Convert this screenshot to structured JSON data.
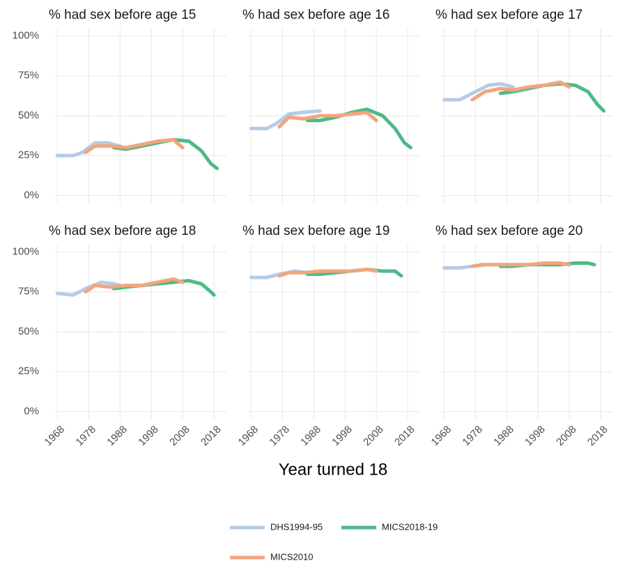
{
  "x_label": "Year turned 18",
  "chart_data": [
    {
      "type": "line",
      "title": "% had sex before age 15",
      "xlim": [
        1967,
        2022
      ],
      "xticks": [
        1968,
        1978,
        1988,
        1998,
        2008,
        2018
      ],
      "ylim": [
        -5,
        105
      ],
      "yticks": [
        {
          "value": 0,
          "label": "0%"
        },
        {
          "value": 25,
          "label": "25%"
        },
        {
          "value": 50,
          "label": "50%"
        },
        {
          "value": 75,
          "label": "75%"
        },
        {
          "value": 100,
          "label": "100%"
        }
      ],
      "series": [
        {
          "name": "DHS1994-95",
          "color": "#b3cce6",
          "x": [
            1968,
            1973,
            1976,
            1980,
            1984,
            1988
          ],
          "values": [
            25,
            25,
            27,
            33,
            33,
            31
          ]
        },
        {
          "name": "MICS2018-19",
          "color": "#4dba87",
          "x": [
            1986,
            1990,
            1995,
            2000,
            2005,
            2010,
            2014,
            2017,
            2019
          ],
          "values": [
            30,
            29,
            31,
            33,
            35,
            34,
            28,
            20,
            17
          ]
        },
        {
          "name": "MICS2010",
          "color": "#f2a57c",
          "x": [
            1977,
            1980,
            1985,
            1990,
            1995,
            2000,
            2005,
            2008
          ],
          "values": [
            27,
            31,
            31,
            30,
            32,
            34,
            35,
            30
          ]
        }
      ]
    },
    {
      "type": "line",
      "title": "% had sex before age 16",
      "xlim": [
        1967,
        2022
      ],
      "xticks": [
        1968,
        1978,
        1988,
        1998,
        2008,
        2018
      ],
      "ylim": [
        -5,
        105
      ],
      "yticks": [
        {
          "value": 0,
          "label": "0%"
        },
        {
          "value": 25,
          "label": "25%"
        },
        {
          "value": 50,
          "label": "50%"
        },
        {
          "value": 75,
          "label": "75%"
        },
        {
          "value": 100,
          "label": "100%"
        }
      ],
      "series": [
        {
          "name": "DHS1994-95",
          "color": "#b3cce6",
          "x": [
            1968,
            1973,
            1976,
            1980,
            1984,
            1990
          ],
          "values": [
            42,
            42,
            45,
            51,
            52,
            53
          ]
        },
        {
          "name": "MICS2018-19",
          "color": "#4dba87",
          "x": [
            1986,
            1990,
            1995,
            2000,
            2005,
            2010,
            2014,
            2017,
            2019
          ],
          "values": [
            47,
            47,
            49,
            52,
            54,
            50,
            42,
            33,
            30
          ]
        },
        {
          "name": "MICS2010",
          "color": "#f2a57c",
          "x": [
            1977,
            1980,
            1985,
            1990,
            1995,
            2000,
            2005,
            2008
          ],
          "values": [
            43,
            49,
            48,
            50,
            50,
            51,
            52,
            47
          ]
        }
      ]
    },
    {
      "type": "line",
      "title": "% had sex before age 17",
      "xlim": [
        1967,
        2022
      ],
      "xticks": [
        1968,
        1978,
        1988,
        1998,
        2008,
        2018
      ],
      "ylim": [
        -5,
        105
      ],
      "yticks": [
        {
          "value": 0,
          "label": "0%"
        },
        {
          "value": 25,
          "label": "25%"
        },
        {
          "value": 50,
          "label": "50%"
        },
        {
          "value": 75,
          "label": "75%"
        },
        {
          "value": 100,
          "label": "100%"
        }
      ],
      "series": [
        {
          "name": "DHS1994-95",
          "color": "#b3cce6",
          "x": [
            1968,
            1973,
            1977,
            1982,
            1986,
            1990
          ],
          "values": [
            60,
            60,
            64,
            69,
            70,
            68
          ]
        },
        {
          "name": "MICS2018-19",
          "color": "#4dba87",
          "x": [
            1986,
            1990,
            1995,
            2000,
            2005,
            2010,
            2014,
            2017,
            2019
          ],
          "values": [
            64,
            65,
            67,
            69,
            70,
            69,
            65,
            57,
            53
          ]
        },
        {
          "name": "MICS2010",
          "color": "#f2a57c",
          "x": [
            1977,
            1981,
            1986,
            1990,
            1995,
            2000,
            2005,
            2008
          ],
          "values": [
            60,
            65,
            67,
            66,
            68,
            69,
            71,
            68
          ]
        }
      ]
    },
    {
      "type": "line",
      "title": "% had sex before age 18",
      "xlim": [
        1967,
        2022
      ],
      "xticks": [
        1968,
        1978,
        1988,
        1998,
        2008,
        2018
      ],
      "ylim": [
        -5,
        105
      ],
      "yticks": [
        {
          "value": 0,
          "label": "0%"
        },
        {
          "value": 25,
          "label": "25%"
        },
        {
          "value": 50,
          "label": "50%"
        },
        {
          "value": 75,
          "label": "75%"
        },
        {
          "value": 100,
          "label": "100%"
        }
      ],
      "series": [
        {
          "name": "DHS1994-95",
          "color": "#b3cce6",
          "x": [
            1968,
            1973,
            1977,
            1982,
            1986,
            1990
          ],
          "values": [
            74,
            73,
            77,
            81,
            80,
            78
          ]
        },
        {
          "name": "MICS2018-19",
          "color": "#4dba87",
          "x": [
            1986,
            1990,
            1995,
            2000,
            2005,
            2010,
            2014,
            2017,
            2018
          ],
          "values": [
            77,
            78,
            79,
            80,
            81,
            82,
            80,
            75,
            73
          ]
        },
        {
          "name": "MICS2010",
          "color": "#f2a57c",
          "x": [
            1977,
            1980,
            1985,
            1990,
            1995,
            2000,
            2005,
            2008
          ],
          "values": [
            75,
            79,
            78,
            79,
            79,
            81,
            83,
            81
          ]
        }
      ]
    },
    {
      "type": "line",
      "title": "% had sex before age 19",
      "xlim": [
        1967,
        2022
      ],
      "xticks": [
        1968,
        1978,
        1988,
        1998,
        2008,
        2018
      ],
      "ylim": [
        -5,
        105
      ],
      "yticks": [
        {
          "value": 0,
          "label": "0%"
        },
        {
          "value": 25,
          "label": "25%"
        },
        {
          "value": 50,
          "label": "50%"
        },
        {
          "value": 75,
          "label": "75%"
        },
        {
          "value": 100,
          "label": "100%"
        }
      ],
      "series": [
        {
          "name": "DHS1994-95",
          "color": "#b3cce6",
          "x": [
            1968,
            1973,
            1977,
            1982,
            1986
          ],
          "values": [
            84,
            84,
            86,
            88,
            87
          ]
        },
        {
          "name": "MICS2018-19",
          "color": "#4dba87",
          "x": [
            1986,
            1990,
            1995,
            2000,
            2005,
            2010,
            2014,
            2016
          ],
          "values": [
            86,
            86,
            87,
            88,
            89,
            88,
            88,
            85
          ]
        },
        {
          "name": "MICS2010",
          "color": "#f2a57c",
          "x": [
            1977,
            1980,
            1985,
            1990,
            1995,
            2000,
            2005,
            2008
          ],
          "values": [
            85,
            87,
            87,
            88,
            88,
            88,
            89,
            88
          ]
        }
      ]
    },
    {
      "type": "line",
      "title": "% had sex before age 20",
      "xlim": [
        1967,
        2022
      ],
      "xticks": [
        1968,
        1978,
        1988,
        1998,
        2008,
        2018
      ],
      "ylim": [
        -5,
        105
      ],
      "yticks": [
        {
          "value": 0,
          "label": "0%"
        },
        {
          "value": 25,
          "label": "25%"
        },
        {
          "value": 50,
          "label": "50%"
        },
        {
          "value": 75,
          "label": "75%"
        },
        {
          "value": 100,
          "label": "100%"
        }
      ],
      "series": [
        {
          "name": "DHS1994-95",
          "color": "#b3cce6",
          "x": [
            1968,
            1973,
            1977,
            1982,
            1986
          ],
          "values": [
            90,
            90,
            91,
            92,
            92
          ]
        },
        {
          "name": "MICS2018-19",
          "color": "#4dba87",
          "x": [
            1986,
            1990,
            1995,
            2000,
            2005,
            2010,
            2014,
            2016
          ],
          "values": [
            91,
            91,
            92,
            92,
            92,
            93,
            93,
            92
          ]
        },
        {
          "name": "MICS2010",
          "color": "#f2a57c",
          "x": [
            1977,
            1980,
            1985,
            1990,
            1995,
            2000,
            2005,
            2008
          ],
          "values": [
            91,
            92,
            92,
            92,
            92,
            93,
            93,
            92
          ]
        }
      ]
    }
  ]
}
